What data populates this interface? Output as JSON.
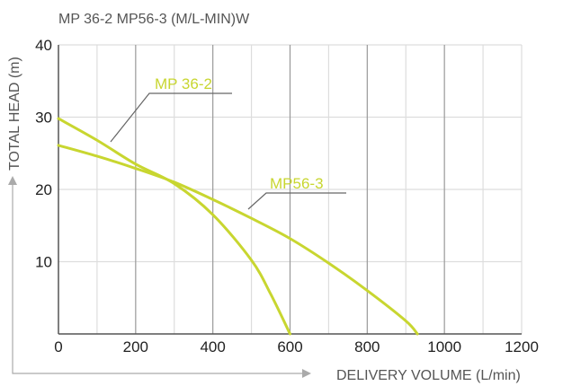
{
  "chart_data": {
    "type": "line",
    "title": "MP 36-2 MP56-3 (M/L-MIN)W",
    "xlabel": "DELIVERY VOLUME (L/min)",
    "ylabel": "TOTAL HEAD (m)",
    "xlim": [
      0,
      1200
    ],
    "ylim": [
      0,
      40
    ],
    "x_ticks": [
      0,
      200,
      400,
      600,
      800,
      1000,
      1200
    ],
    "y_ticks": [
      10,
      20,
      30,
      40
    ],
    "grid": true,
    "series": [
      {
        "name": "MP 36-2",
        "x": [
          0,
          100,
          200,
          300,
          400,
          500,
          550,
          600
        ],
        "y": [
          29.8,
          26.8,
          23.5,
          20.8,
          16.5,
          10.2,
          5.5,
          0
        ]
      },
      {
        "name": "MP56-3",
        "x": [
          0,
          100,
          200,
          300,
          400,
          500,
          600,
          700,
          800,
          900,
          930
        ],
        "y": [
          26.1,
          24.6,
          22.9,
          21.0,
          18.6,
          16.0,
          13.2,
          9.8,
          6.0,
          1.8,
          0
        ]
      }
    ],
    "annotations": [
      "MP 36-2",
      "MP56-3"
    ],
    "colors": {
      "line": "#c8d630",
      "grid_major": "#999999",
      "grid_minor": "#dddddd",
      "text": "#222222",
      "muted_text": "#555555"
    }
  }
}
